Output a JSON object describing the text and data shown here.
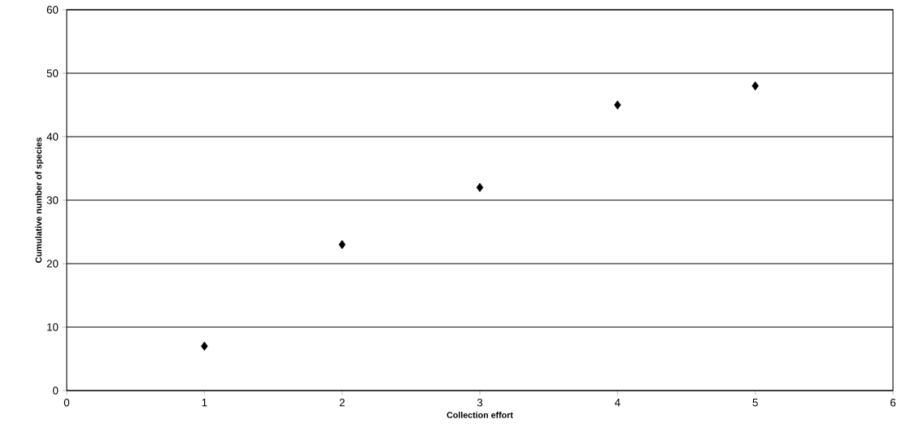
{
  "chart_data": {
    "type": "scatter",
    "xlabel": "Collection effort",
    "ylabel": "Cumulative number of species",
    "x": [
      1,
      2,
      3,
      4,
      5
    ],
    "values": [
      7,
      23,
      32,
      45,
      48
    ],
    "color": "#000000",
    "marker": "diamond",
    "xlim": [
      0,
      6
    ],
    "xticks": [
      0,
      1,
      2,
      3,
      4,
      5,
      6
    ],
    "ylim": [
      0,
      60
    ],
    "yticks": [
      0,
      10,
      20,
      30,
      40,
      50,
      60
    ],
    "grid": "y"
  }
}
